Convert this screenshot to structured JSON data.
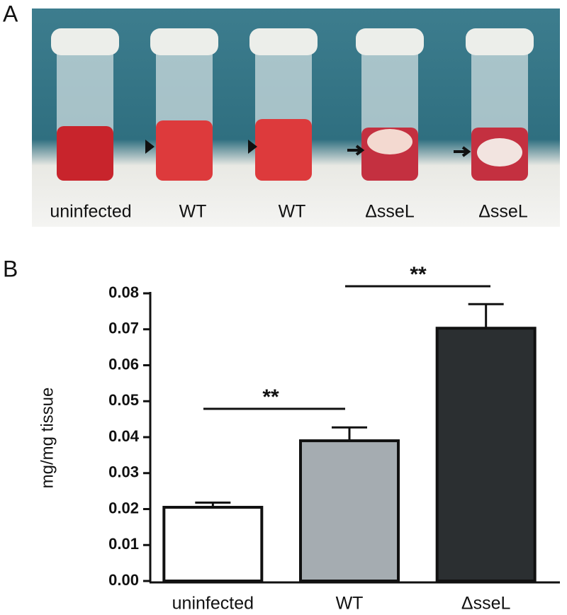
{
  "panel_labels": [
    "A",
    "B"
  ],
  "photo_labels": [
    "uninfected",
    "WT",
    "WT",
    "ΔsseL",
    "ΔsseL"
  ],
  "chart_data": {
    "type": "bar",
    "y_label": "mg/mg tissue",
    "categories": [
      "uninfected",
      "WT",
      "ΔsseL"
    ],
    "values": [
      0.0205,
      0.039,
      0.0703
    ],
    "errors": [
      0.0013,
      0.0037,
      0.0067
    ],
    "colors": [
      "#ffffff",
      "#a5acb1",
      "#2b2f31"
    ],
    "ylim": [
      0,
      0.08
    ],
    "yticks": [
      {
        "value": 0,
        "label": "0.00"
      },
      {
        "value": 0.01,
        "label": "0.01"
      },
      {
        "value": 0.02,
        "label": "0.02"
      },
      {
        "value": 0.03,
        "label": "0.03"
      },
      {
        "value": 0.04,
        "label": "0.04"
      },
      {
        "value": 0.05,
        "label": "0.05"
      },
      {
        "value": 0.06,
        "label": "0.06"
      },
      {
        "value": 0.07,
        "label": "0.07"
      },
      {
        "value": 0.08,
        "label": "0.08"
      }
    ],
    "annotations": [
      "**",
      "**"
    ]
  }
}
